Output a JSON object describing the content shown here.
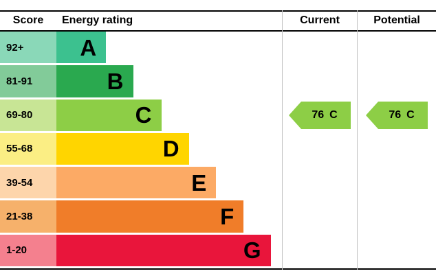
{
  "header": {
    "score": "Score",
    "rating": "Energy rating",
    "current": "Current",
    "potential": "Potential"
  },
  "rows": [
    {
      "score": "92+",
      "letter": "A",
      "bar_color": "#3cc18f",
      "score_bg": "#8ad8b8",
      "bar_width_pct": 22
    },
    {
      "score": "81-91",
      "letter": "B",
      "bar_color": "#2aa94f",
      "score_bg": "#82cb99",
      "bar_width_pct": 34
    },
    {
      "score": "69-80",
      "letter": "C",
      "bar_color": "#8dce46",
      "score_bg": "#c8e595",
      "bar_width_pct": 46.5
    },
    {
      "score": "55-68",
      "letter": "D",
      "bar_color": "#ffd500",
      "score_bg": "#fbee84",
      "bar_width_pct": 58.7
    },
    {
      "score": "39-54",
      "letter": "E",
      "bar_color": "#fcaa65",
      "score_bg": "#fdd5ab",
      "bar_width_pct": 70.8
    },
    {
      "score": "21-38",
      "letter": "F",
      "bar_color": "#f07d29",
      "score_bg": "#f6b16b",
      "bar_width_pct": 83
    },
    {
      "score": "1-20",
      "letter": "G",
      "bar_color": "#e9153b",
      "score_bg": "#f4808e",
      "bar_width_pct": 95
    }
  ],
  "current": {
    "value": "76",
    "letter": "C",
    "color": "#8dce46"
  },
  "potential": {
    "value": "76",
    "letter": "C",
    "color": "#8dce46"
  },
  "chart_data": {
    "type": "bar",
    "title": "Energy rating",
    "categories": [
      "A",
      "B",
      "C",
      "D",
      "E",
      "F",
      "G"
    ],
    "score_ranges": [
      "92+",
      "81-91",
      "69-80",
      "55-68",
      "39-54",
      "21-38",
      "1-20"
    ],
    "bar_lengths_pct": [
      22,
      34,
      46.5,
      58.7,
      70.8,
      83,
      95
    ],
    "bar_colors": [
      "#3cc18f",
      "#2aa94f",
      "#8dce46",
      "#ffd500",
      "#fcaa65",
      "#f07d29",
      "#e9153b"
    ],
    "legend_position": "none",
    "grid": false,
    "current": {
      "score": 76,
      "rating": "C"
    },
    "potential": {
      "score": 76,
      "rating": "C"
    }
  }
}
